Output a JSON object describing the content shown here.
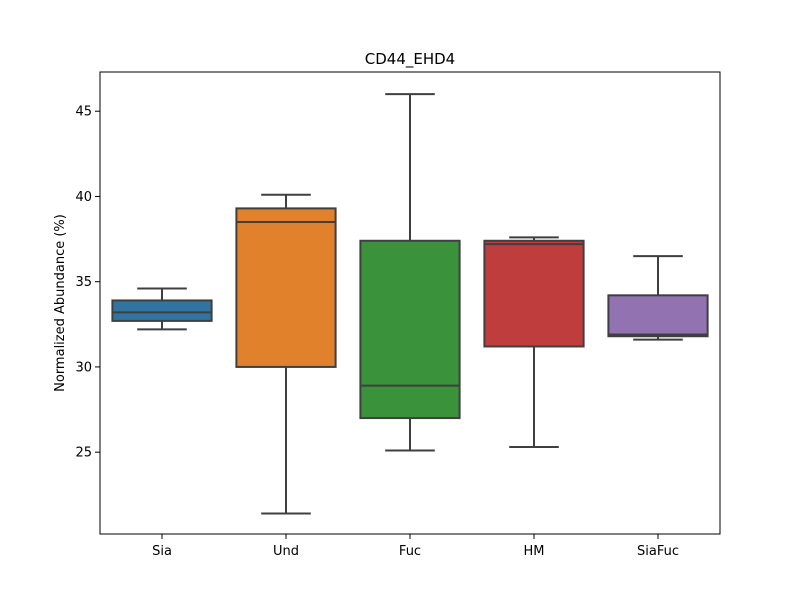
{
  "chart_data": {
    "type": "box",
    "title": "CD44_EHD4",
    "xlabel": "",
    "ylabel": "Normalized Abundance (%)",
    "ylim": [
      20.2,
      47.3
    ],
    "yticks": [
      25,
      30,
      35,
      40,
      45
    ],
    "grid": false,
    "categories": [
      "Sia",
      "Und",
      "Fuc",
      "HM",
      "SiaFuc"
    ],
    "colors": [
      "#3274a1",
      "#e1812c",
      "#3a923a",
      "#c03d3e",
      "#9372b2"
    ],
    "boxes": [
      {
        "category": "Sia",
        "whisker_low": 32.2,
        "q1": 32.7,
        "median": 33.2,
        "q3": 33.9,
        "whisker_high": 34.6
      },
      {
        "category": "Und",
        "whisker_low": 21.4,
        "q1": 30.0,
        "median": 38.5,
        "q3": 39.3,
        "whisker_high": 40.1
      },
      {
        "category": "Fuc",
        "whisker_low": 25.1,
        "q1": 27.0,
        "median": 28.9,
        "q3": 37.4,
        "whisker_high": 46.0
      },
      {
        "category": "HM",
        "whisker_low": 25.3,
        "q1": 31.2,
        "median": 37.2,
        "q3": 37.4,
        "whisker_high": 37.6
      },
      {
        "category": "SiaFuc",
        "whisker_low": 31.6,
        "q1": 31.8,
        "median": 31.9,
        "q3": 34.2,
        "whisker_high": 36.5
      }
    ]
  }
}
